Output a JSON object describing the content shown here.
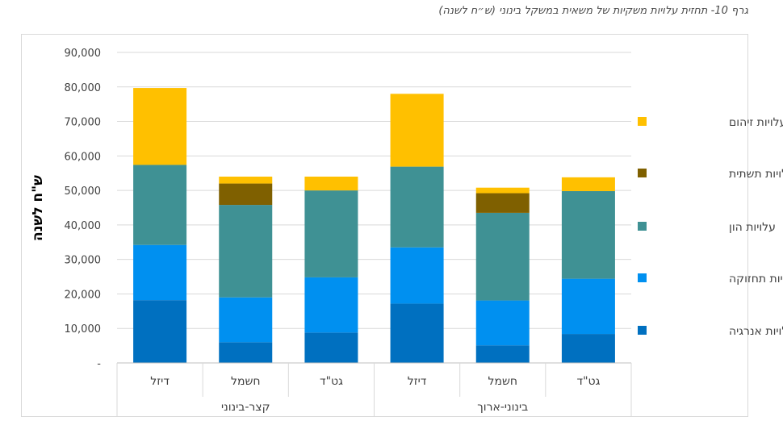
{
  "chart_data": {
    "type": "bar",
    "stacked": true,
    "title": "גרף 10- תחזית עלויות משקיות של משאית במשקל בינוני (ש״ח לשנה)",
    "xlabel": "",
    "ylabel": "ש\"ח לשנה",
    "ylim": [
      0,
      90000
    ],
    "yticks": [
      "-",
      "10,000",
      "20,000",
      "30,000",
      "40,000",
      "50,000",
      "60,000",
      "70,000",
      "80,000",
      "90,000"
    ],
    "grid": true,
    "legend_position": "right",
    "groups": [
      {
        "label": "קצר-בינוני",
        "categories": [
          "דיזל",
          "חשמל",
          "גט\"ד"
        ]
      },
      {
        "label": "בינוני-ארוך",
        "categories": [
          "דיזל",
          "חשמל",
          "גט\"ד"
        ]
      }
    ],
    "categories": [
      "דיזל",
      "חשמל",
      "גט\"ד",
      "דיזל",
      "חשמל",
      "גט\"ד"
    ],
    "series": [
      {
        "name": "עלויות אנרגיה",
        "color": "#0070c0",
        "values": [
          18200,
          6000,
          8800,
          17200,
          5100,
          8400
        ]
      },
      {
        "name": "עלויות תחזוקה",
        "color": "#0090f0",
        "values": [
          16000,
          13000,
          16000,
          16300,
          13000,
          16000
        ]
      },
      {
        "name": "עלויות הון",
        "color": "#3f9194",
        "values": [
          23200,
          26800,
          25200,
          23400,
          25400,
          25400
        ]
      },
      {
        "name": "עלויות תשתית",
        "color": "#7f6000",
        "values": [
          0,
          6200,
          0,
          0,
          5700,
          0
        ]
      },
      {
        "name": "עלויות זיהום",
        "color": "#ffc000",
        "values": [
          22300,
          2000,
          4000,
          21100,
          1600,
          4000
        ]
      }
    ]
  }
}
